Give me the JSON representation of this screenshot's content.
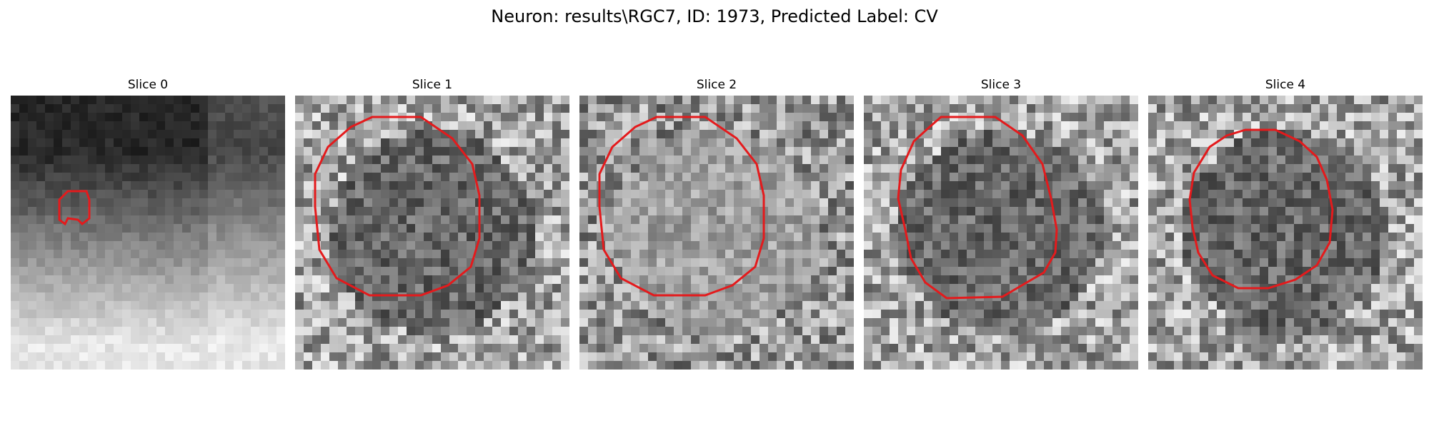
{
  "figure": {
    "title": "Neuron: results\\RGC7, ID: 1973, Predicted Label: CV"
  },
  "panels": [
    {
      "title": "Slice 0",
      "image": "grayscale-microscopy-slice",
      "contour_color": "#e41a1c",
      "seed": 11,
      "pattern": "dark-top-bright-bottom",
      "contour": "small-roi"
    },
    {
      "title": "Slice 1",
      "image": "grayscale-microscopy-slice",
      "contour_color": "#e41a1c",
      "seed": 23,
      "pattern": "dark-cell-center",
      "contour": "octagon-large"
    },
    {
      "title": "Slice 2",
      "image": "grayscale-microscopy-slice",
      "contour_color": "#e41a1c",
      "seed": 37,
      "pattern": "light-cell-center",
      "contour": "octagon-large"
    },
    {
      "title": "Slice 3",
      "image": "grayscale-microscopy-slice",
      "contour_color": "#e41a1c",
      "seed": 51,
      "pattern": "dark-cell-center",
      "contour": "octagon-irregular"
    },
    {
      "title": "Slice 4",
      "image": "grayscale-microscopy-slice",
      "contour_color": "#e41a1c",
      "seed": 67,
      "pattern": "dark-cell-center",
      "contour": "octagon-medium"
    }
  ]
}
